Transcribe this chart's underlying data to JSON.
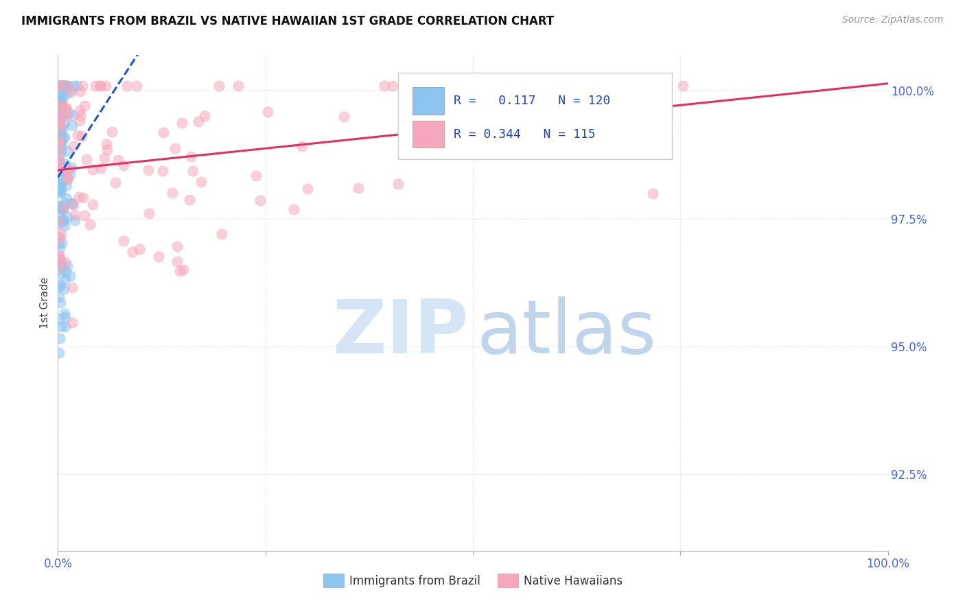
{
  "title": "IMMIGRANTS FROM BRAZIL VS NATIVE HAWAIIAN 1ST GRADE CORRELATION CHART",
  "source": "Source: ZipAtlas.com",
  "ylabel": "1st Grade",
  "ytick_labels": [
    "100.0%",
    "97.5%",
    "95.0%",
    "92.5%"
  ],
  "ytick_values": [
    1.0,
    0.975,
    0.95,
    0.925
  ],
  "xlim": [
    0.0,
    1.0
  ],
  "ylim": [
    0.91,
    1.007
  ],
  "r_brazil": 0.117,
  "n_brazil": 120,
  "r_hawaiian": 0.344,
  "n_hawaiian": 115,
  "color_brazil": "#8DC4F0",
  "color_hawaiian": "#F5A8BB",
  "trendline_brazil_color": "#2255CC",
  "trendline_hawaiian_color": "#E03060",
  "watermark_zip_color": "#D0DFF0",
  "watermark_atlas_color": "#B8D0E8",
  "background_color": "#FFFFFF",
  "grid_color": "#E8E8E8",
  "tick_color": "#4466DD",
  "legend_text_color": "#2244BB",
  "legend_r1": "R =   0.117   N = 120",
  "legend_r2": "R = 0.344   N = 115",
  "trendline_brazil_intercept": 0.988,
  "trendline_brazil_slope": 0.004,
  "trendline_hawaiian_intercept": 0.99,
  "trendline_hawaiian_slope": 0.01
}
